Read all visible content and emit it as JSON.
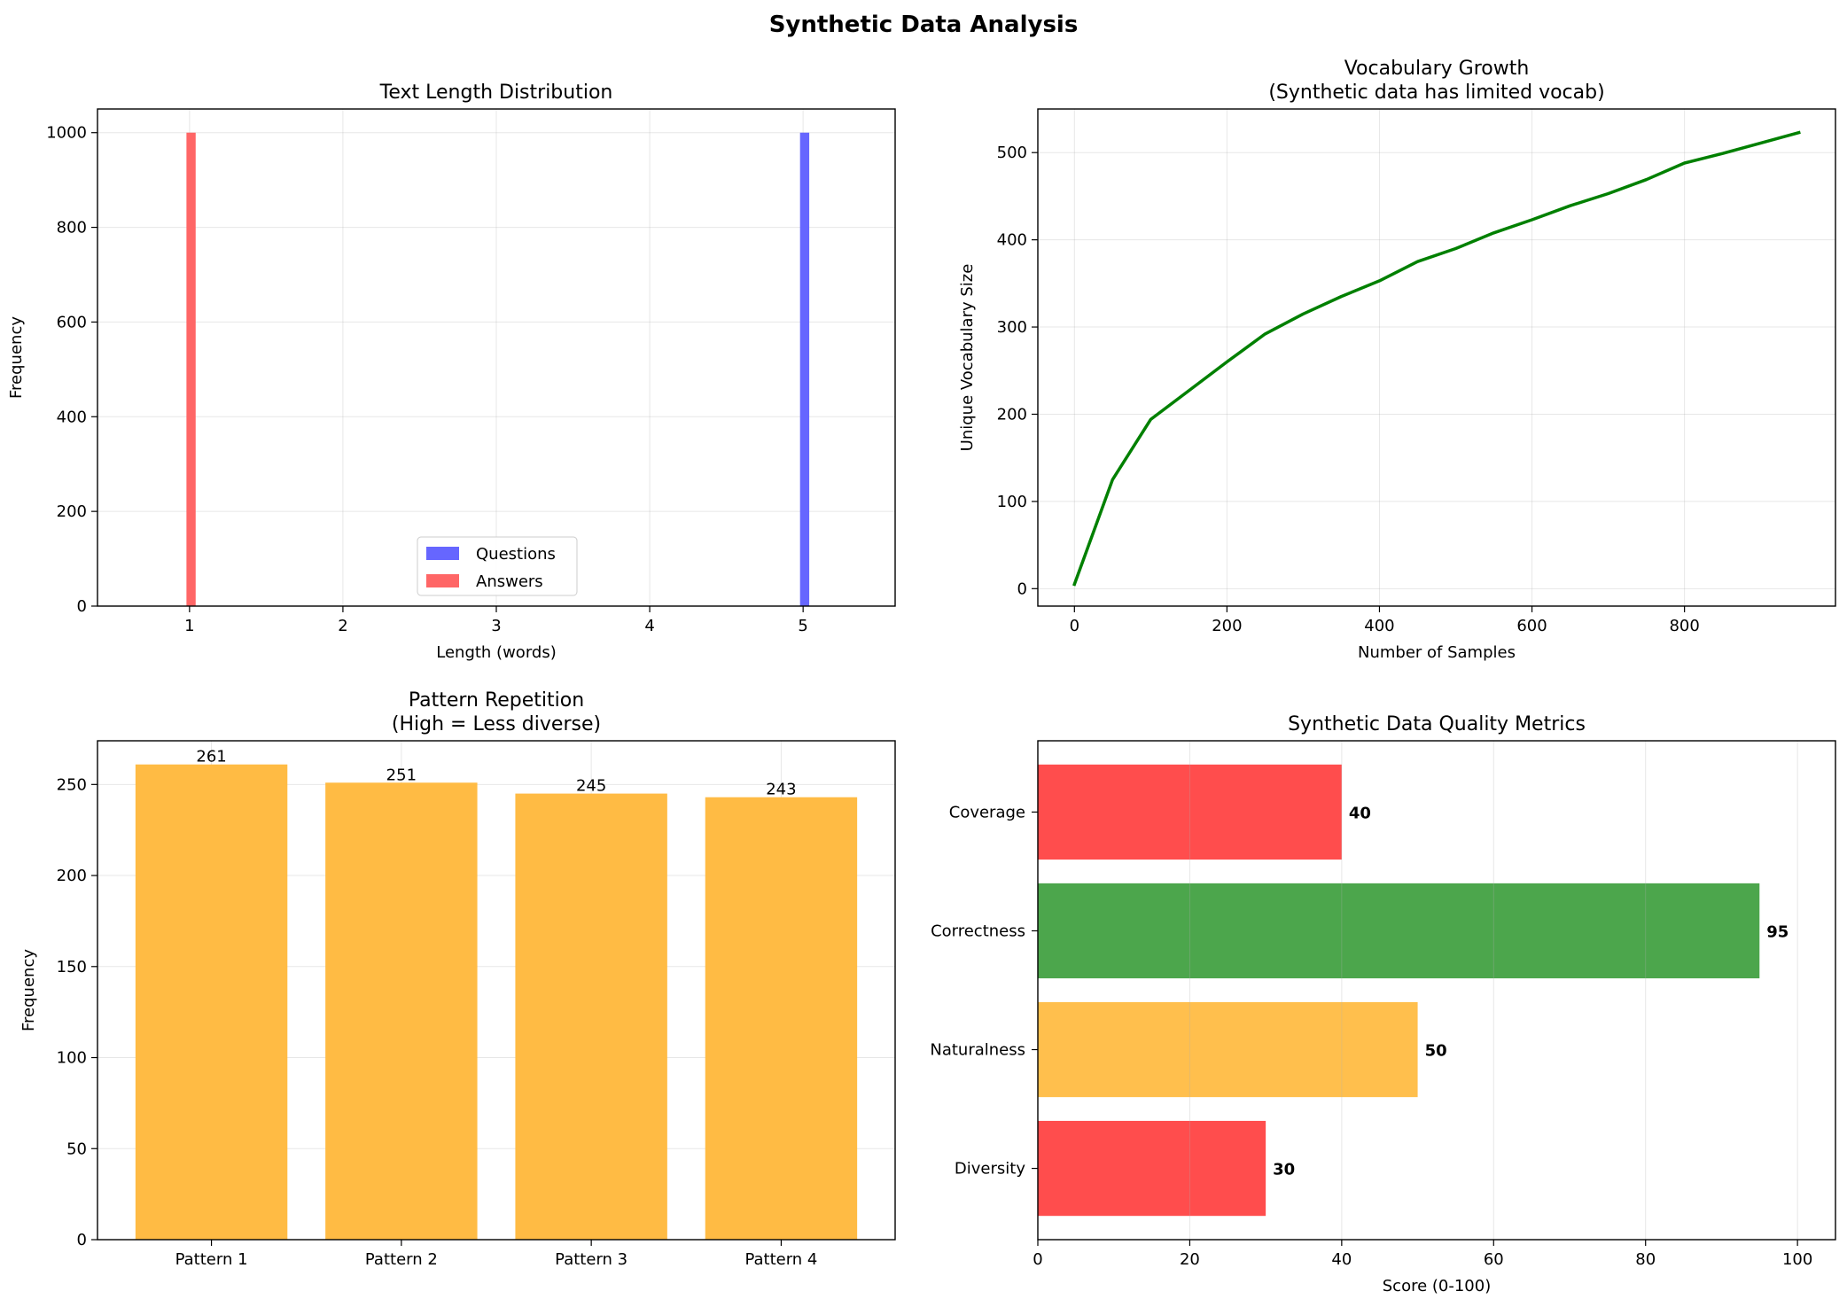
{
  "suptitle": "Synthetic Data Analysis",
  "chart_data": [
    {
      "id": "text-length",
      "type": "bar",
      "subtype": "histogram",
      "title": [
        "Text Length Distribution"
      ],
      "xlabel": "Length (words)",
      "ylabel": "Frequency",
      "xlim": [
        0.4,
        5.6
      ],
      "ylim": [
        0,
        1050
      ],
      "xticks": [
        1,
        2,
        3,
        4,
        5
      ],
      "yticks": [
        0,
        200,
        400,
        600,
        800,
        1000
      ],
      "grid": true,
      "legend": "lower-center",
      "series": [
        {
          "name": "Questions",
          "color": "#6666ff",
          "bins": [
            {
              "x0": 4.98,
              "x1": 5.04,
              "value": 1000
            }
          ]
        },
        {
          "name": "Answers",
          "color": "#ff6666",
          "bins": [
            {
              "x0": 0.98,
              "x1": 1.04,
              "value": 1000
            }
          ]
        }
      ]
    },
    {
      "id": "vocab-growth",
      "type": "line",
      "title": [
        "Vocabulary Growth",
        "(Synthetic data has limited vocab)"
      ],
      "xlabel": "Number of Samples",
      "ylabel": "Unique Vocabulary Size",
      "xlim": [
        -48,
        998
      ],
      "ylim": [
        -20,
        550
      ],
      "xticks": [
        0,
        200,
        400,
        600,
        800
      ],
      "yticks": [
        0,
        100,
        200,
        300,
        400,
        500
      ],
      "grid": true,
      "series": [
        {
          "color": "#008000",
          "x": [
            0,
            50,
            100,
            150,
            200,
            250,
            300,
            350,
            400,
            450,
            500,
            550,
            600,
            650,
            700,
            750,
            800,
            850,
            900,
            950
          ],
          "y": [
            5,
            125,
            194,
            227,
            260,
            292,
            315,
            335,
            353,
            375,
            390,
            408,
            423,
            439,
            453,
            469,
            488,
            499,
            511,
            523
          ]
        }
      ]
    },
    {
      "id": "pattern-repetition",
      "type": "bar",
      "title": [
        "Pattern Repetition",
        "(High = Less diverse)"
      ],
      "xlabel": "",
      "ylabel": "Frequency",
      "ylim": [
        0,
        274
      ],
      "yticks": [
        0,
        50,
        100,
        150,
        200,
        250
      ],
      "grid": true,
      "color": "#ffbb44",
      "categories": [
        "Pattern 1",
        "Pattern 2",
        "Pattern 3",
        "Pattern 4"
      ],
      "values": [
        261,
        251,
        245,
        243
      ],
      "data_labels": [
        "261",
        "251",
        "245",
        "243"
      ]
    },
    {
      "id": "quality-metrics",
      "type": "bar",
      "orientation": "horizontal",
      "title": [
        "Synthetic Data Quality Metrics"
      ],
      "xlabel": "Score (0-100)",
      "ylabel": "",
      "xlim": [
        0,
        105
      ],
      "xticks": [
        0,
        20,
        40,
        60,
        80,
        100
      ],
      "grid": true,
      "categories": [
        "Coverage",
        "Correctness",
        "Naturalness",
        "Diversity"
      ],
      "values": [
        40,
        95,
        50,
        30
      ],
      "colors": [
        "#ff4d4d",
        "#4ca64c",
        "#ffbf4d",
        "#ff4d4d"
      ],
      "data_labels": [
        "40",
        "95",
        "50",
        "30"
      ]
    }
  ]
}
